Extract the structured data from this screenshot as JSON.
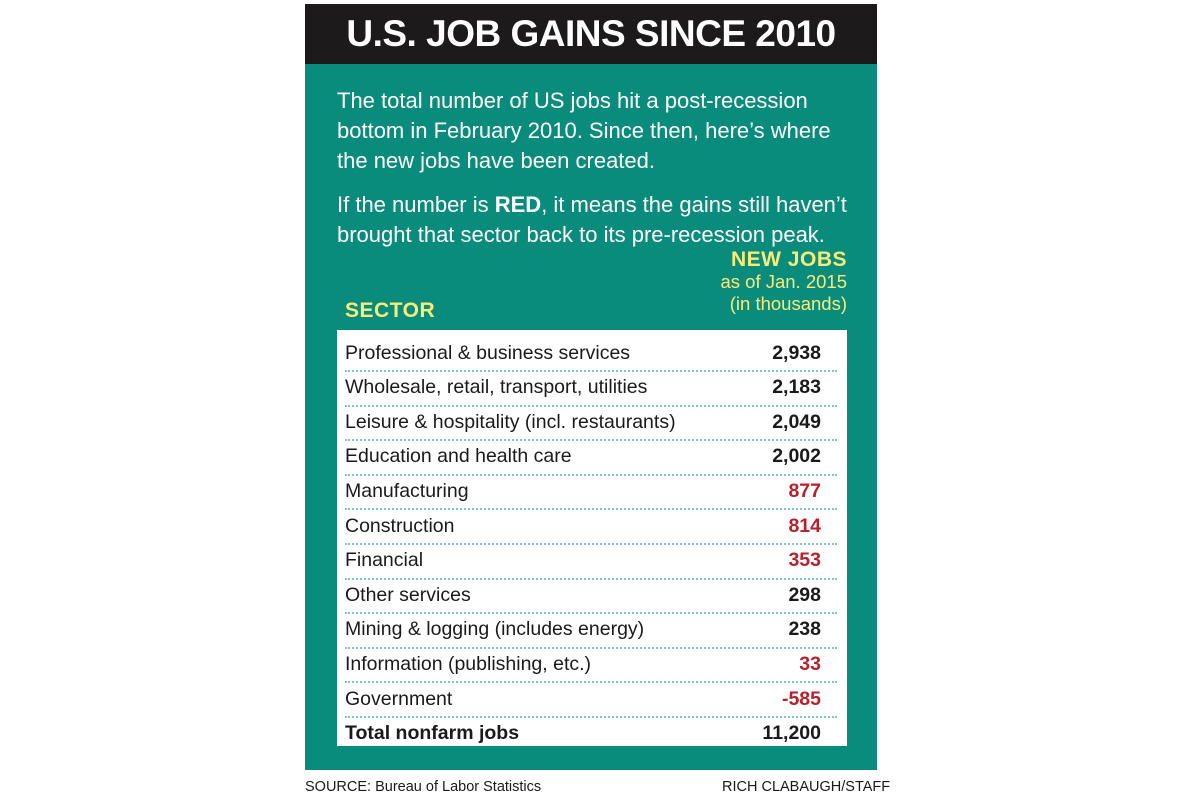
{
  "title": "U.S. JOB GAINS SINCE 2010",
  "intro": {
    "p1": "The total number of US jobs hit a post-recession bottom in February 2010. Since then, here’s where the new jobs have been created.",
    "p2_before": "If the number is ",
    "p2_bold": "RED",
    "p2_after": ", it means the gains still haven’t brought that sector back to its pre-recession peak."
  },
  "column_header": {
    "line1": "NEW JOBS",
    "line2": "as of Jan. 2015",
    "line3": "(in thousands)"
  },
  "sector_header": "SECTOR",
  "colors": {
    "background": "#0a8c7c",
    "title_bar": "#1c1a1a",
    "highlight": "#f7ec7a",
    "red": "#b8202b",
    "black": "#1a1a1a"
  },
  "chart_data": {
    "type": "table",
    "title": "U.S. JOB GAINS SINCE 2010",
    "columns": [
      "SECTOR",
      "NEW JOBS as of Jan. 2015 (in thousands)"
    ],
    "rows": [
      {
        "sector": "Professional & business services",
        "value": "2,938",
        "red": false
      },
      {
        "sector": "Wholesale, retail, transport, utilities",
        "value": "2,183",
        "red": false
      },
      {
        "sector": "Leisure & hospitality (incl. restaurants)",
        "value": "2,049",
        "red": false
      },
      {
        "sector": "Education and health care",
        "value": "2,002",
        "red": false
      },
      {
        "sector": "Manufacturing",
        "value": "877",
        "red": true
      },
      {
        "sector": "Construction",
        "value": "814",
        "red": true
      },
      {
        "sector": "Financial",
        "value": "353",
        "red": true
      },
      {
        "sector": "Other services",
        "value": "298",
        "red": false
      },
      {
        "sector": "Mining & logging (includes energy)",
        "value": "238",
        "red": false
      },
      {
        "sector": "Information (publishing, etc.)",
        "value": "33",
        "red": true
      },
      {
        "sector": "Government",
        "value": "-585",
        "red": true
      },
      {
        "sector": "Total nonfarm jobs",
        "value": "11,200",
        "red": false,
        "total": true
      }
    ]
  },
  "footer": {
    "source": "SOURCE: Bureau of Labor Statistics",
    "credit": "RICH CLABAUGH/STAFF"
  }
}
